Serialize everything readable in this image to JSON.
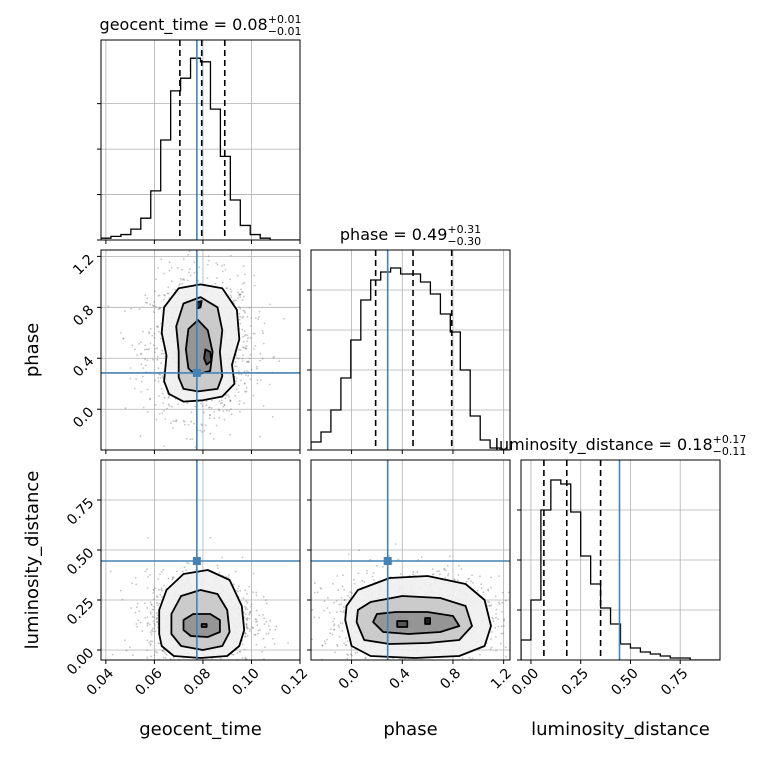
{
  "colors": {
    "truth": "#4682b4",
    "hist": "#000000",
    "quantile": "#000000",
    "grid": "#b0b0b0",
    "contour": "#000000"
  },
  "chart_data": {
    "type": "corner",
    "grid": true,
    "parameters": [
      {
        "name": "geocent_time",
        "label": "geocent_time",
        "title_prefix": "geocent_time = 0.08",
        "title_plus": "+0.01",
        "title_minus": "−0.01",
        "range": [
          0.038,
          0.12
        ],
        "ticks": [
          0.04,
          0.06,
          0.08,
          0.1,
          0.12
        ],
        "tick_labels": [
          "0.04",
          "0.06",
          "0.08",
          "0.10",
          "0.12"
        ],
        "truth": 0.0775,
        "quantiles": [
          0.0705,
          0.0795,
          0.089
        ],
        "hist_bins": [
          0.038,
          0.0421,
          0.0462,
          0.0503,
          0.0544,
          0.0585,
          0.0626,
          0.0667,
          0.0708,
          0.0749,
          0.079,
          0.0831,
          0.0872,
          0.0913,
          0.0954,
          0.0995,
          0.1036,
          0.1077,
          0.1118,
          0.1159,
          0.12
        ],
        "hist_counts": [
          1,
          2,
          3,
          6,
          12,
          27,
          55,
          82,
          89,
          100,
          98,
          72,
          46,
          22,
          8,
          3,
          1,
          0,
          0,
          0
        ],
        "hist_ylim": [
          0,
          110
        ],
        "hist_ticks": [
          0,
          25,
          50,
          75
        ]
      },
      {
        "name": "phase",
        "label": "phase",
        "title_prefix": "phase = 0.49",
        "title_plus": "+0.31",
        "title_minus": "−0.30",
        "range": [
          -0.32,
          1.25
        ],
        "ticks": [
          0.0,
          0.4,
          0.8,
          1.2
        ],
        "tick_labels": [
          "0.0",
          "0.4",
          "0.8",
          "1.2"
        ],
        "truth": 0.285,
        "quantiles": [
          0.19,
          0.485,
          0.79
        ],
        "hist_bins": [
          -0.32,
          -0.241,
          -0.163,
          -0.084,
          -0.006,
          0.073,
          0.151,
          0.23,
          0.308,
          0.387,
          0.465,
          0.544,
          0.622,
          0.701,
          0.779,
          0.858,
          0.936,
          1.015,
          1.093,
          1.172,
          1.25
        ],
        "hist_counts": [
          4,
          9,
          20,
          36,
          55,
          75,
          85,
          89,
          91,
          88,
          88,
          84,
          78,
          68,
          59,
          40,
          17,
          5,
          1,
          0
        ],
        "hist_ylim": [
          0,
          100
        ],
        "hist_ticks": [
          0,
          20,
          40,
          60,
          80
        ]
      },
      {
        "name": "luminosity_distance",
        "label": "luminosity_distance",
        "title_prefix": "luminosity_distance = 0.18",
        "title_plus": "+0.17",
        "title_minus": "−0.11",
        "range": [
          -0.05,
          0.95
        ],
        "ticks": [
          0.0,
          0.25,
          0.5,
          0.75
        ],
        "tick_labels": [
          "0.00",
          "0.25",
          "0.50",
          "0.75"
        ],
        "truth": 0.445,
        "quantiles": [
          0.065,
          0.18,
          0.35
        ],
        "hist_bins": [
          -0.05,
          0.0,
          0.05,
          0.1,
          0.15,
          0.2,
          0.25,
          0.3,
          0.35,
          0.4,
          0.45,
          0.5,
          0.55,
          0.6,
          0.65,
          0.7,
          0.75,
          0.8,
          0.85,
          0.9,
          0.95
        ],
        "hist_counts": [
          10,
          30,
          75,
          90,
          88,
          74,
          52,
          38,
          26,
          18,
          8,
          6,
          4,
          3,
          2,
          1,
          1,
          0,
          0,
          0
        ],
        "hist_ylim": [
          0,
          100
        ],
        "hist_ticks": [
          0,
          25,
          50,
          75
        ]
      }
    ],
    "pairs": [
      {
        "x": "geocent_time",
        "y": "phase",
        "peak": [
          0.079,
          0.49
        ],
        "sigma": [
          0.0095,
          0.24
        ],
        "contours": [
          [
            [
              0.064,
              0.22
            ],
            [
              0.066,
              0.12
            ],
            [
              0.072,
              0.06
            ],
            [
              0.08,
              0.07
            ],
            [
              0.088,
              0.1
            ],
            [
              0.093,
              0.2
            ],
            [
              0.092,
              0.35
            ],
            [
              0.095,
              0.55
            ],
            [
              0.094,
              0.78
            ],
            [
              0.088,
              0.95
            ],
            [
              0.079,
              0.98
            ],
            [
              0.07,
              0.95
            ],
            [
              0.064,
              0.8
            ],
            [
              0.063,
              0.6
            ],
            [
              0.065,
              0.42
            ]
          ],
          [
            [
              0.07,
              0.25
            ],
            [
              0.072,
              0.16
            ],
            [
              0.078,
              0.14
            ],
            [
              0.086,
              0.16
            ],
            [
              0.088,
              0.26
            ],
            [
              0.087,
              0.45
            ],
            [
              0.088,
              0.62
            ],
            [
              0.086,
              0.8
            ],
            [
              0.079,
              0.88
            ],
            [
              0.072,
              0.83
            ],
            [
              0.069,
              0.65
            ],
            [
              0.07,
              0.45
            ]
          ],
          [
            [
              0.074,
              0.32
            ],
            [
              0.077,
              0.27
            ],
            [
              0.083,
              0.3
            ],
            [
              0.084,
              0.45
            ],
            [
              0.082,
              0.62
            ],
            [
              0.078,
              0.7
            ],
            [
              0.074,
              0.63
            ],
            [
              0.073,
              0.47
            ]
          ],
          [
            [
              0.0815,
              0.35
            ],
            [
              0.0835,
              0.38
            ],
            [
              0.083,
              0.45
            ],
            [
              0.081,
              0.47
            ],
            [
              0.0805,
              0.4
            ]
          ],
          [
            [
              0.0775,
              0.84
            ],
            [
              0.0795,
              0.85
            ],
            [
              0.079,
              0.8
            ],
            [
              0.0775,
              0.79
            ]
          ]
        ]
      },
      {
        "x": "geocent_time",
        "y": "luminosity_distance",
        "peak": [
          0.079,
          0.15
        ],
        "sigma": [
          0.0095,
          0.1
        ],
        "contours": [
          [
            [
              0.062,
              0.08
            ],
            [
              0.063,
              0.02
            ],
            [
              0.068,
              -0.03
            ],
            [
              0.079,
              -0.04
            ],
            [
              0.09,
              -0.03
            ],
            [
              0.095,
              0.02
            ],
            [
              0.097,
              0.1
            ],
            [
              0.096,
              0.22
            ],
            [
              0.091,
              0.35
            ],
            [
              0.082,
              0.4
            ],
            [
              0.072,
              0.38
            ],
            [
              0.065,
              0.3
            ],
            [
              0.062,
              0.2
            ]
          ],
          [
            [
              0.067,
              0.08
            ],
            [
              0.071,
              0.02
            ],
            [
              0.08,
              0.0
            ],
            [
              0.088,
              0.02
            ],
            [
              0.091,
              0.09
            ],
            [
              0.09,
              0.2
            ],
            [
              0.086,
              0.28
            ],
            [
              0.079,
              0.3
            ],
            [
              0.071,
              0.27
            ],
            [
              0.067,
              0.18
            ]
          ],
          [
            [
              0.072,
              0.1
            ],
            [
              0.075,
              0.07
            ],
            [
              0.082,
              0.065
            ],
            [
              0.087,
              0.09
            ],
            [
              0.087,
              0.15
            ],
            [
              0.083,
              0.18
            ],
            [
              0.076,
              0.18
            ],
            [
              0.072,
              0.15
            ]
          ],
          [
            [
              0.0795,
              0.115
            ],
            [
              0.0815,
              0.115
            ],
            [
              0.0815,
              0.13
            ],
            [
              0.0795,
              0.13
            ]
          ]
        ]
      },
      {
        "x": "phase",
        "y": "luminosity_distance",
        "peak": [
          0.49,
          0.15
        ],
        "sigma": [
          0.3,
          0.1
        ],
        "contours": [
          [
            [
              -0.05,
              0.15
            ],
            [
              0.0,
              0.02
            ],
            [
              0.15,
              -0.03
            ],
            [
              0.5,
              -0.04
            ],
            [
              0.85,
              -0.03
            ],
            [
              1.05,
              0.02
            ],
            [
              1.1,
              0.12
            ],
            [
              1.05,
              0.25
            ],
            [
              0.9,
              0.33
            ],
            [
              0.6,
              0.37
            ],
            [
              0.3,
              0.36
            ],
            [
              0.05,
              0.3
            ],
            [
              -0.04,
              0.22
            ]
          ],
          [
            [
              0.04,
              0.14
            ],
            [
              0.1,
              0.05
            ],
            [
              0.3,
              0.03
            ],
            [
              0.6,
              0.035
            ],
            [
              0.85,
              0.05
            ],
            [
              0.95,
              0.12
            ],
            [
              0.9,
              0.22
            ],
            [
              0.7,
              0.26
            ],
            [
              0.4,
              0.27
            ],
            [
              0.15,
              0.24
            ],
            [
              0.05,
              0.2
            ]
          ],
          [
            [
              0.17,
              0.14
            ],
            [
              0.25,
              0.09
            ],
            [
              0.45,
              0.08
            ],
            [
              0.7,
              0.09
            ],
            [
              0.85,
              0.12
            ],
            [
              0.8,
              0.17
            ],
            [
              0.6,
              0.19
            ],
            [
              0.35,
              0.19
            ],
            [
              0.2,
              0.18
            ]
          ],
          [
            [
              0.36,
              0.115
            ],
            [
              0.44,
              0.115
            ],
            [
              0.44,
              0.145
            ],
            [
              0.36,
              0.145
            ]
          ],
          [
            [
              0.58,
              0.13
            ],
            [
              0.62,
              0.13
            ],
            [
              0.62,
              0.16
            ],
            [
              0.58,
              0.16
            ]
          ]
        ]
      }
    ]
  }
}
